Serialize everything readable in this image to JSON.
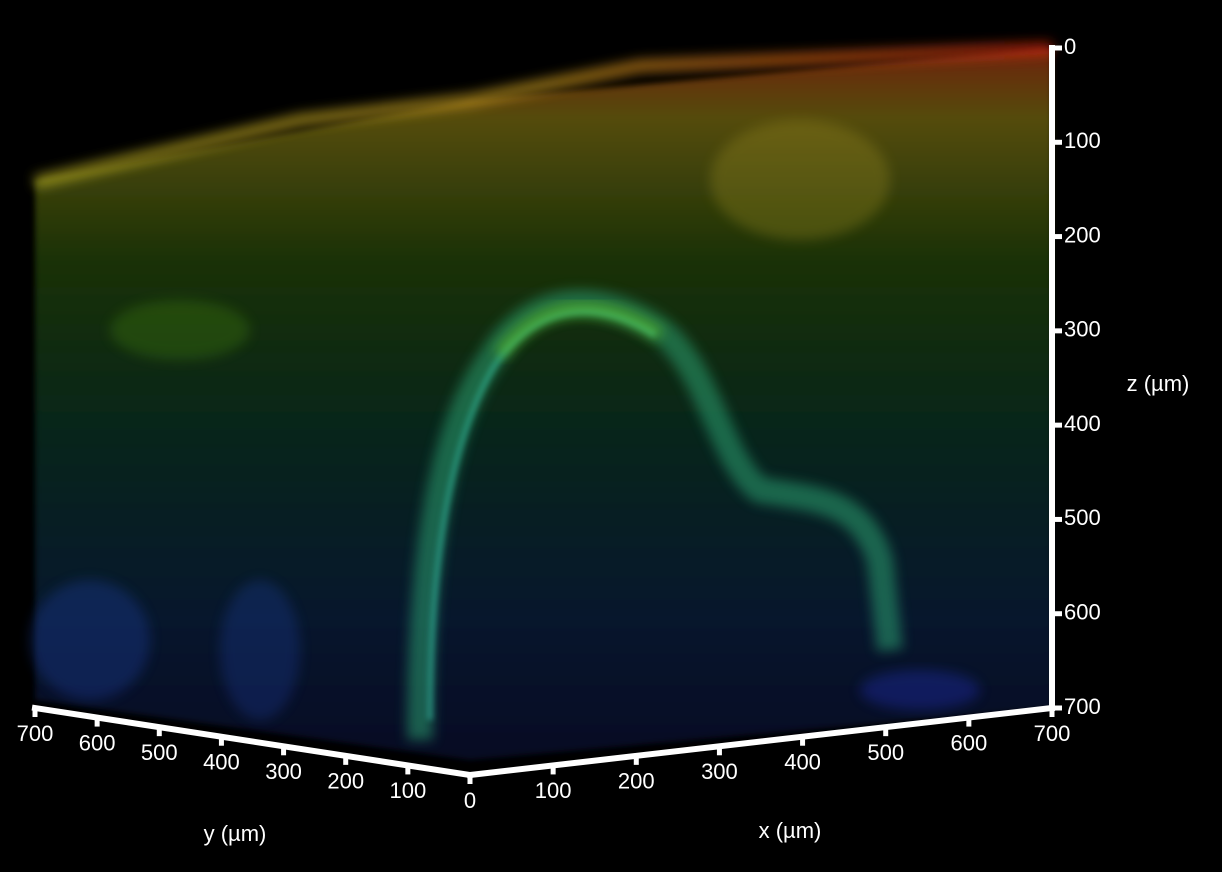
{
  "axes": {
    "z": {
      "label": "z (µm)",
      "ticks": [
        "0",
        "100",
        "200",
        "300",
        "400",
        "500",
        "600",
        "700"
      ]
    },
    "x": {
      "label": "x (µm)",
      "ticks": [
        "0",
        "100",
        "200",
        "300",
        "400",
        "500",
        "600",
        "700"
      ]
    },
    "y": {
      "label": "y (µm)",
      "ticks": [
        "100",
        "200",
        "300",
        "400",
        "500",
        "600",
        "700"
      ]
    }
  }
}
